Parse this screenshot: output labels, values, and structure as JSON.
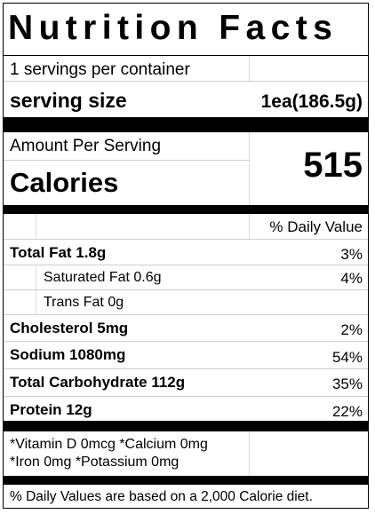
{
  "title": "Nutrition Facts",
  "servings_per_container": "1 servings per container",
  "serving_size": {
    "label": "serving size",
    "value": "1ea(186.5g)"
  },
  "amount_per_serving": "Amount Per Serving",
  "calories": {
    "label": "Calories",
    "value": "515"
  },
  "daily_value_header": "% Daily Value",
  "nutrients": [
    {
      "name": "Total Fat 1.8g",
      "dv": "3%"
    },
    {
      "name": "Saturated Fat 0.6g",
      "dv": "4%"
    },
    {
      "name": "Trans Fat 0g",
      "dv": ""
    },
    {
      "name": "Cholesterol 5mg",
      "dv": "2%"
    },
    {
      "name": "Sodium 1080mg",
      "dv": "54%"
    },
    {
      "name": "Total Carbohydrate 112g",
      "dv": "35%"
    },
    {
      "name": "Protein 12g",
      "dv": "22%"
    }
  ],
  "vitamins_line1": "*Vitamin D 0mcg *Calcium 0mg",
  "vitamins_line2": "*Iron 0mg *Potassium 0mg",
  "footnote": "% Daily Values are based on a 2,000 Calorie diet."
}
